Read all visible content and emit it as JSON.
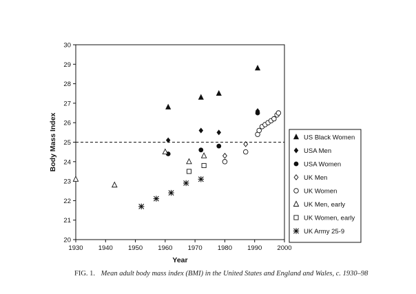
{
  "chart_data": {
    "type": "scatter",
    "ylabel": "Body Mass Index",
    "xlabel": "Year",
    "xlim": [
      1930,
      2000
    ],
    "ylim": [
      20,
      30
    ],
    "xticks": [
      "1930",
      "1940",
      "1950",
      "1960",
      "1970",
      "1980",
      "1990",
      "2000"
    ],
    "yticks": [
      "20",
      "21",
      "22",
      "23",
      "24",
      "25",
      "26",
      "27",
      "28",
      "29",
      "30"
    ],
    "reference_line": {
      "y": 25,
      "style": "dashed"
    },
    "legend_position": "right",
    "series": [
      {
        "name": "US Black Women",
        "marker": "filled-triangle",
        "points": [
          [
            1961,
            26.8
          ],
          [
            1972,
            27.3
          ],
          [
            1978,
            27.5
          ],
          [
            1991,
            28.8
          ]
        ]
      },
      {
        "name": "USA Men",
        "marker": "filled-diamond",
        "points": [
          [
            1961,
            25.1
          ],
          [
            1972,
            25.6
          ],
          [
            1978,
            25.5
          ],
          [
            1991,
            26.6
          ]
        ]
      },
      {
        "name": "USA Women",
        "marker": "filled-circle",
        "points": [
          [
            1961,
            24.4
          ],
          [
            1972,
            24.6
          ],
          [
            1978,
            24.8
          ],
          [
            1991,
            26.5
          ]
        ]
      },
      {
        "name": "UK Men",
        "marker": "open-diamond",
        "points": [
          [
            1980,
            24.3
          ],
          [
            1987,
            24.9
          ]
        ]
      },
      {
        "name": "UK Women",
        "marker": "open-circle",
        "points": [
          [
            1980,
            24.0
          ],
          [
            1987,
            24.5
          ],
          [
            1991,
            25.4
          ],
          [
            1991.5,
            25.6
          ],
          [
            1992.5,
            25.8
          ],
          [
            1993.5,
            25.9
          ],
          [
            1994.5,
            26.0
          ],
          [
            1995.5,
            26.1
          ],
          [
            1996.5,
            26.2
          ],
          [
            1997.5,
            26.4
          ],
          [
            1998,
            26.5
          ]
        ]
      },
      {
        "name": "UK Men, early",
        "marker": "open-triangle",
        "points": [
          [
            1930,
            23.1
          ],
          [
            1943,
            22.8
          ],
          [
            1960,
            24.5
          ],
          [
            1968,
            24.0
          ],
          [
            1973,
            24.3
          ]
        ]
      },
      {
        "name": "UK Women, early",
        "marker": "open-square",
        "points": [
          [
            1968,
            23.5
          ],
          [
            1973,
            23.8
          ]
        ]
      },
      {
        "name": "UK Army 25-9",
        "marker": "asterisk",
        "points": [
          [
            1952,
            21.7
          ],
          [
            1957,
            22.1
          ],
          [
            1962,
            22.4
          ],
          [
            1967,
            22.9
          ],
          [
            1972,
            23.1
          ]
        ]
      }
    ]
  },
  "caption": {
    "label": "FIG. 1.",
    "text": "Mean adult body mass index (BMI) in the United States and England and Wales, c. 1930–98"
  }
}
